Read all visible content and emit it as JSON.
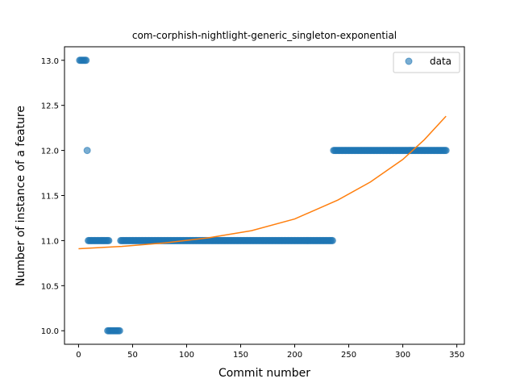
{
  "chart_data": {
    "type": "scatter",
    "title": "com-corphish-nightlight-generic_singleton-exponential",
    "xlabel": "Commit number",
    "ylabel": "Number of instance of a feature",
    "xlim": [
      -13,
      357
    ],
    "ylim": [
      9.85,
      13.15
    ],
    "xticks": [
      0,
      50,
      100,
      150,
      200,
      250,
      300,
      350
    ],
    "yticks": [
      10.0,
      10.5,
      11.0,
      11.5,
      12.0,
      12.5,
      13.0
    ],
    "grid": false,
    "legend": {
      "placement": "top-right",
      "entries": [
        "data"
      ]
    },
    "colors": {
      "data": "#1f77b4",
      "fit": "#ff7f0e"
    },
    "series": [
      {
        "name": "data",
        "kind": "scatter",
        "segments": [
          {
            "x_start": 1,
            "x_end": 7,
            "y": 13.0
          },
          {
            "x_start": 8,
            "x_end": 8,
            "y": 12.0
          },
          {
            "x_start": 9,
            "x_end": 28,
            "y": 11.0
          },
          {
            "x_start": 27,
            "x_end": 38,
            "y": 10.0
          },
          {
            "x_start": 39,
            "x_end": 235,
            "y": 11.0
          },
          {
            "x_start": 236,
            "x_end": 340,
            "y": 12.0
          }
        ]
      },
      {
        "kind": "line",
        "x": [
          0,
          40,
          80,
          120,
          160,
          200,
          240,
          270,
          300,
          320,
          340
        ],
        "y": [
          10.91,
          10.935,
          10.975,
          11.03,
          11.11,
          11.24,
          11.45,
          11.65,
          11.9,
          12.12,
          12.38
        ]
      }
    ]
  }
}
